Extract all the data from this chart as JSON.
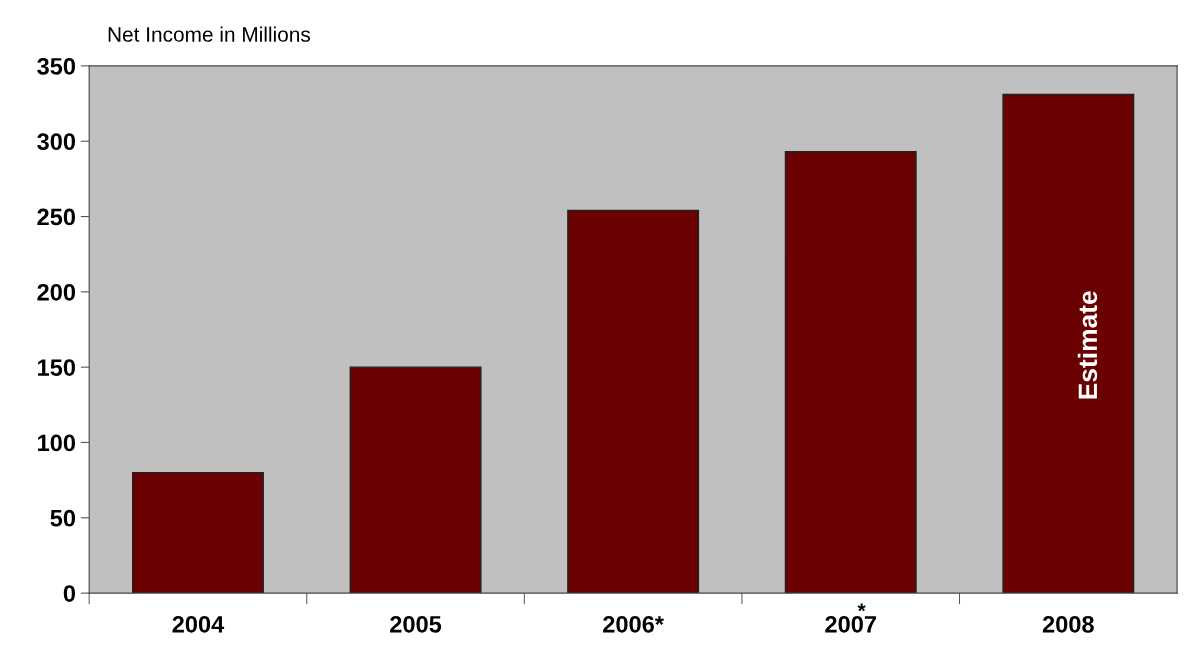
{
  "chart_data": {
    "type": "bar",
    "title": "Net Income in Millions",
    "categories": [
      "2004",
      "2005",
      "2006*",
      "2007",
      "2008"
    ],
    "values": [
      80,
      150,
      254,
      293,
      331
    ],
    "color": "#6a0000",
    "ylim": [
      0,
      350
    ],
    "yticks": [
      0,
      50,
      100,
      150,
      200,
      250,
      300,
      350
    ],
    "grid": false,
    "annotations": [
      "*",
      "Estimate"
    ]
  }
}
